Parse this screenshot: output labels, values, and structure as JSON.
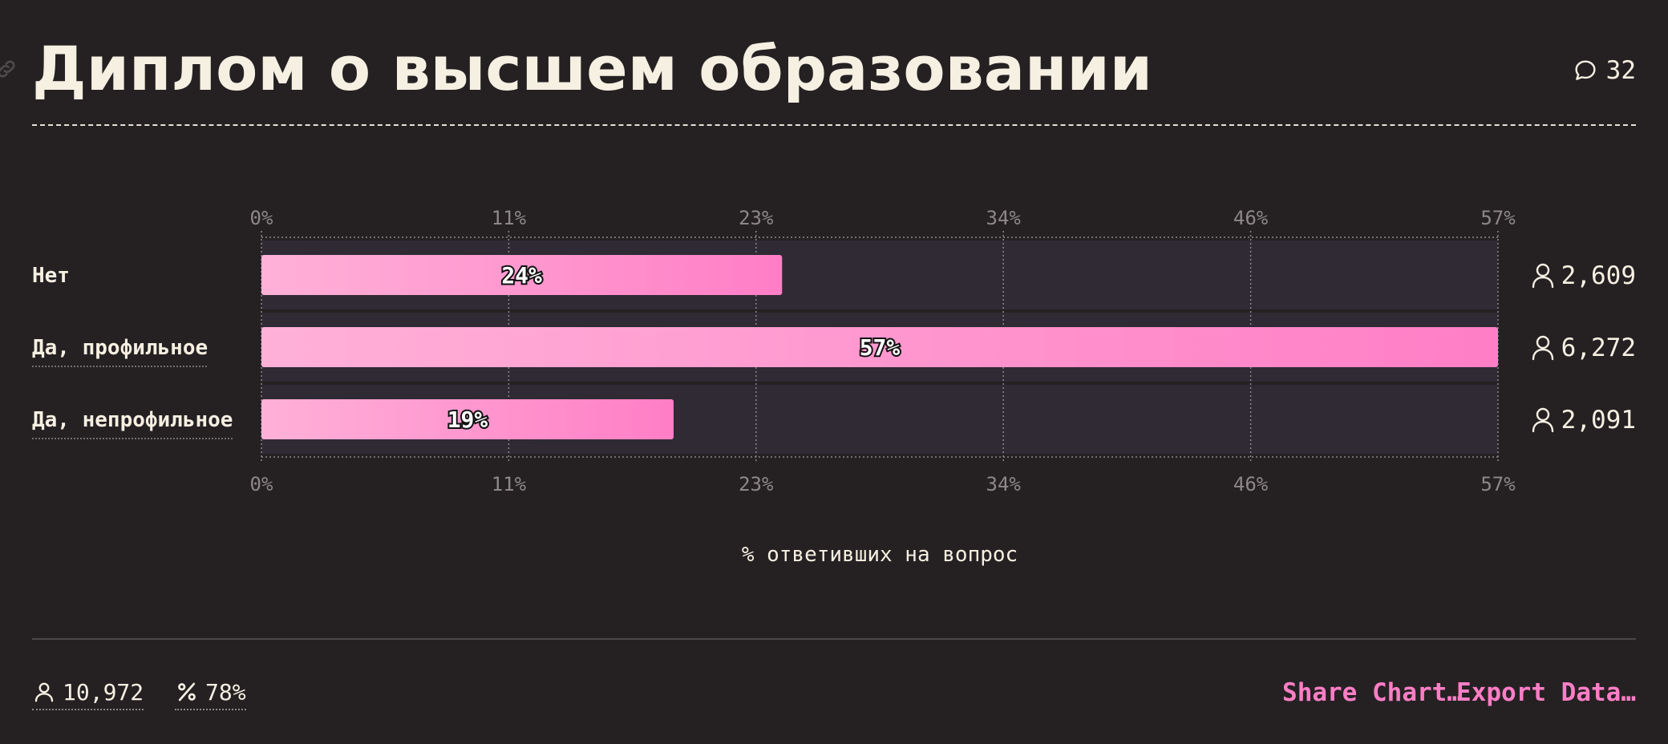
{
  "header": {
    "title": "Диплом о высшем образовании",
    "comments_count": "32"
  },
  "icons": {
    "link": "link-icon",
    "comment": "comment-icon",
    "user": "user-icon",
    "percent": "percent-icon"
  },
  "colors": {
    "background": "#252123",
    "track": "#2f2a34",
    "bar_start": "#ffb1d8",
    "bar_end": "#ff7ec6",
    "accent": "#ff7ec6",
    "text": "#f6f0e2",
    "muted": "#8d878a"
  },
  "chart_data": {
    "type": "bar",
    "orientation": "horizontal",
    "categories": [
      "Нет",
      "Да, профильное",
      "Да, непрофильное"
    ],
    "values": [
      24,
      57,
      19
    ],
    "value_labels": [
      "24%",
      "57%",
      "19%"
    ],
    "counts": [
      "2,609",
      "6,272",
      "2,091"
    ],
    "xlim": [
      0,
      57
    ],
    "ticks": [
      0,
      11.4,
      22.8,
      34.2,
      45.6,
      57
    ],
    "tick_labels": [
      "0%",
      "11%",
      "23%",
      "34%",
      "46%",
      "57%"
    ],
    "xlabel": "% ответивших на вопрос",
    "grid": true
  },
  "footer": {
    "total_respondents": "10,972",
    "percent_answered": "78%",
    "share_label": "Share Chart…",
    "export_label": "Export Data…"
  }
}
